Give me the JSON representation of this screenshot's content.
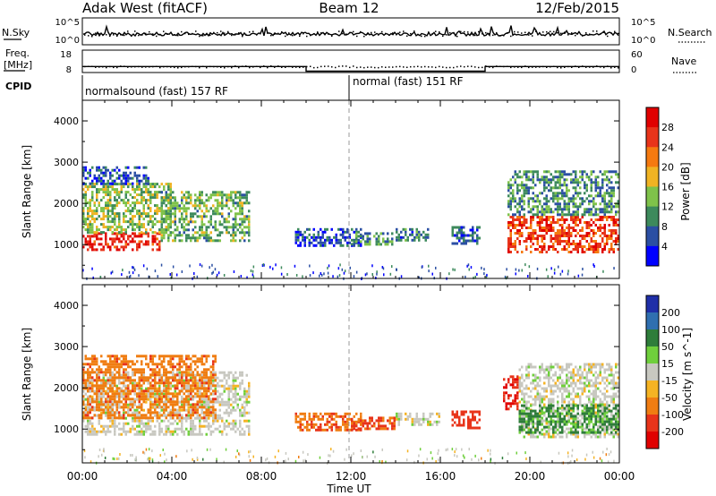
{
  "header": {
    "station": "Adak West (fitACF)",
    "beam": "Beam 12",
    "date": "12/Feb/2015"
  },
  "noise_panel": {
    "left_label": "N.Sky",
    "right_label": "N.Search",
    "left_ticks": [
      "10^5",
      "10^0"
    ],
    "right_ticks": [
      "10^5",
      "10^0"
    ]
  },
  "freq_panel": {
    "left_label_1": "Freq.",
    "left_label_2": "[MHz]",
    "right_label": "Nave",
    "left_ticks": [
      "18",
      "8"
    ],
    "right_ticks": [
      "60",
      "0"
    ]
  },
  "cpid": {
    "label": "CPID",
    "segments": [
      {
        "start": "00:00",
        "text": "normalsound (fast) 157 RF"
      },
      {
        "start": "12:00",
        "text": "normal (fast) 151 RF"
      }
    ]
  },
  "colors": {
    "power_scale": [
      "#0000ff",
      "#2b4fa3",
      "#3d8a5c",
      "#7fc24a",
      "#f0b323",
      "#f57a10",
      "#e8341a",
      "#e00000"
    ],
    "velocity_scale": [
      "#1f2fa8",
      "#2f6fb0",
      "#2e7d3a",
      "#6fcf3c",
      "#c8c8c0",
      "#f5b323",
      "#f07d12",
      "#e8341a",
      "#e00000"
    ]
  },
  "chart_data": [
    {
      "type": "heatmap",
      "title": "Power",
      "xlabel": "Time UT",
      "ylabel": "Slant Range [km]",
      "x_ticks": [
        "00:00",
        "04:00",
        "08:00",
        "12:00",
        "16:00",
        "20:00",
        "00:00"
      ],
      "xlim": [
        0,
        24
      ],
      "y_ticks": [
        1000,
        2000,
        3000,
        4000
      ],
      "ylim": [
        180,
        4500
      ],
      "colorbar": {
        "label": "Power [dB]",
        "ticks": [
          4,
          8,
          12,
          16,
          20,
          24,
          28
        ],
        "range": [
          0,
          32
        ]
      },
      "features": [
        {
          "t0": 0.0,
          "t1": 3.5,
          "r0": 850,
          "r1": 1300,
          "level": 28
        },
        {
          "t0": 0.0,
          "t1": 4.0,
          "r0": 1300,
          "r1": 2500,
          "level": 14
        },
        {
          "t0": 0.0,
          "t1": 3.0,
          "r0": 2500,
          "r1": 2900,
          "level": 6
        },
        {
          "t0": 3.5,
          "t1": 7.5,
          "r0": 1100,
          "r1": 2300,
          "level": 12
        },
        {
          "t0": 9.5,
          "t1": 12.5,
          "r0": 1000,
          "r1": 1400,
          "level": 6
        },
        {
          "t0": 12.0,
          "t1": 13.8,
          "r0": 1000,
          "r1": 1300,
          "level": 10
        },
        {
          "t0": 14.0,
          "t1": 15.5,
          "r0": 1100,
          "r1": 1400,
          "level": 8
        },
        {
          "t0": 16.5,
          "t1": 17.8,
          "r0": 1000,
          "r1": 1450,
          "level": 7
        },
        {
          "t0": 19.0,
          "t1": 24.0,
          "r0": 800,
          "r1": 1700,
          "level": 26
        },
        {
          "t0": 19.0,
          "t1": 24.0,
          "r0": 1700,
          "r1": 2800,
          "level": 10
        }
      ]
    },
    {
      "type": "heatmap",
      "title": "Velocity",
      "xlabel": "Time UT",
      "ylabel": "Slant Range [km]",
      "x_ticks": [
        "00:00",
        "04:00",
        "08:00",
        "12:00",
        "16:00",
        "20:00",
        "00:00"
      ],
      "xlim": [
        0,
        24
      ],
      "y_ticks": [
        1000,
        2000,
        3000,
        4000
      ],
      "ylim": [
        180,
        4500
      ],
      "colorbar": {
        "label": "Velocity [m s^-1]",
        "ticks": [
          200,
          100,
          50,
          15,
          -15,
          -50,
          -100,
          -200
        ]
      },
      "features": [
        {
          "t0": 0.0,
          "t1": 7.5,
          "r0": 850,
          "r1": 2400,
          "value": 0
        },
        {
          "t0": 0.0,
          "t1": 6.0,
          "r0": 1300,
          "r1": 2800,
          "value": -60
        },
        {
          "t0": 9.5,
          "t1": 12.5,
          "r0": 1000,
          "r1": 1400,
          "value": -70
        },
        {
          "t0": 12.0,
          "t1": 14.0,
          "r0": 1000,
          "r1": 1300,
          "value": -80
        },
        {
          "t0": 14.0,
          "t1": 16.0,
          "r0": 1100,
          "r1": 1400,
          "value": 0
        },
        {
          "t0": 16.5,
          "t1": 17.8,
          "r0": 1000,
          "r1": 1450,
          "value": -110
        },
        {
          "t0": 18.8,
          "t1": 19.5,
          "r0": 1500,
          "r1": 2300,
          "value": -150
        },
        {
          "t0": 19.5,
          "t1": 24.0,
          "r0": 800,
          "r1": 2600,
          "value": 0
        },
        {
          "t0": 19.5,
          "t1": 24.0,
          "r0": 900,
          "r1": 1600,
          "value": 40
        }
      ]
    }
  ]
}
